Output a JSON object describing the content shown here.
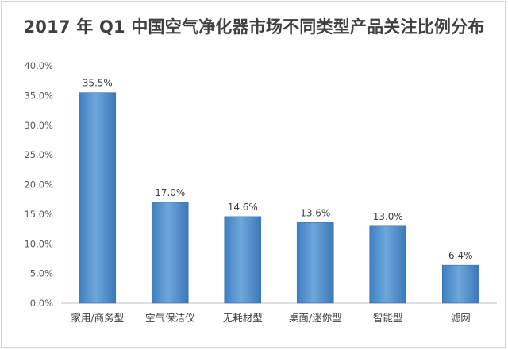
{
  "chart_data": {
    "type": "bar",
    "title": "2017 年 Q1 中国空气净化器市场不同类型产品关注比例分布",
    "categories": [
      "家用/商务型",
      "空气保洁仪",
      "无耗材型",
      "桌面/迷你型",
      "智能型",
      "滤网"
    ],
    "values": [
      35.5,
      17.0,
      14.6,
      13.6,
      13.0,
      6.4
    ],
    "data_labels": [
      "35.5%",
      "17.0%",
      "14.6%",
      "13.6%",
      "13.0%",
      "6.4%"
    ],
    "ylim": [
      0,
      40
    ],
    "yticks": [
      0,
      5,
      10,
      15,
      20,
      25,
      30,
      35,
      40
    ],
    "ytick_labels": [
      "0.0%",
      "5.0%",
      "10.0%",
      "15.0%",
      "20.0%",
      "25.0%",
      "30.0%",
      "35.0%",
      "40.0%"
    ],
    "grid": false,
    "bar_color": "#5B9BD5"
  }
}
